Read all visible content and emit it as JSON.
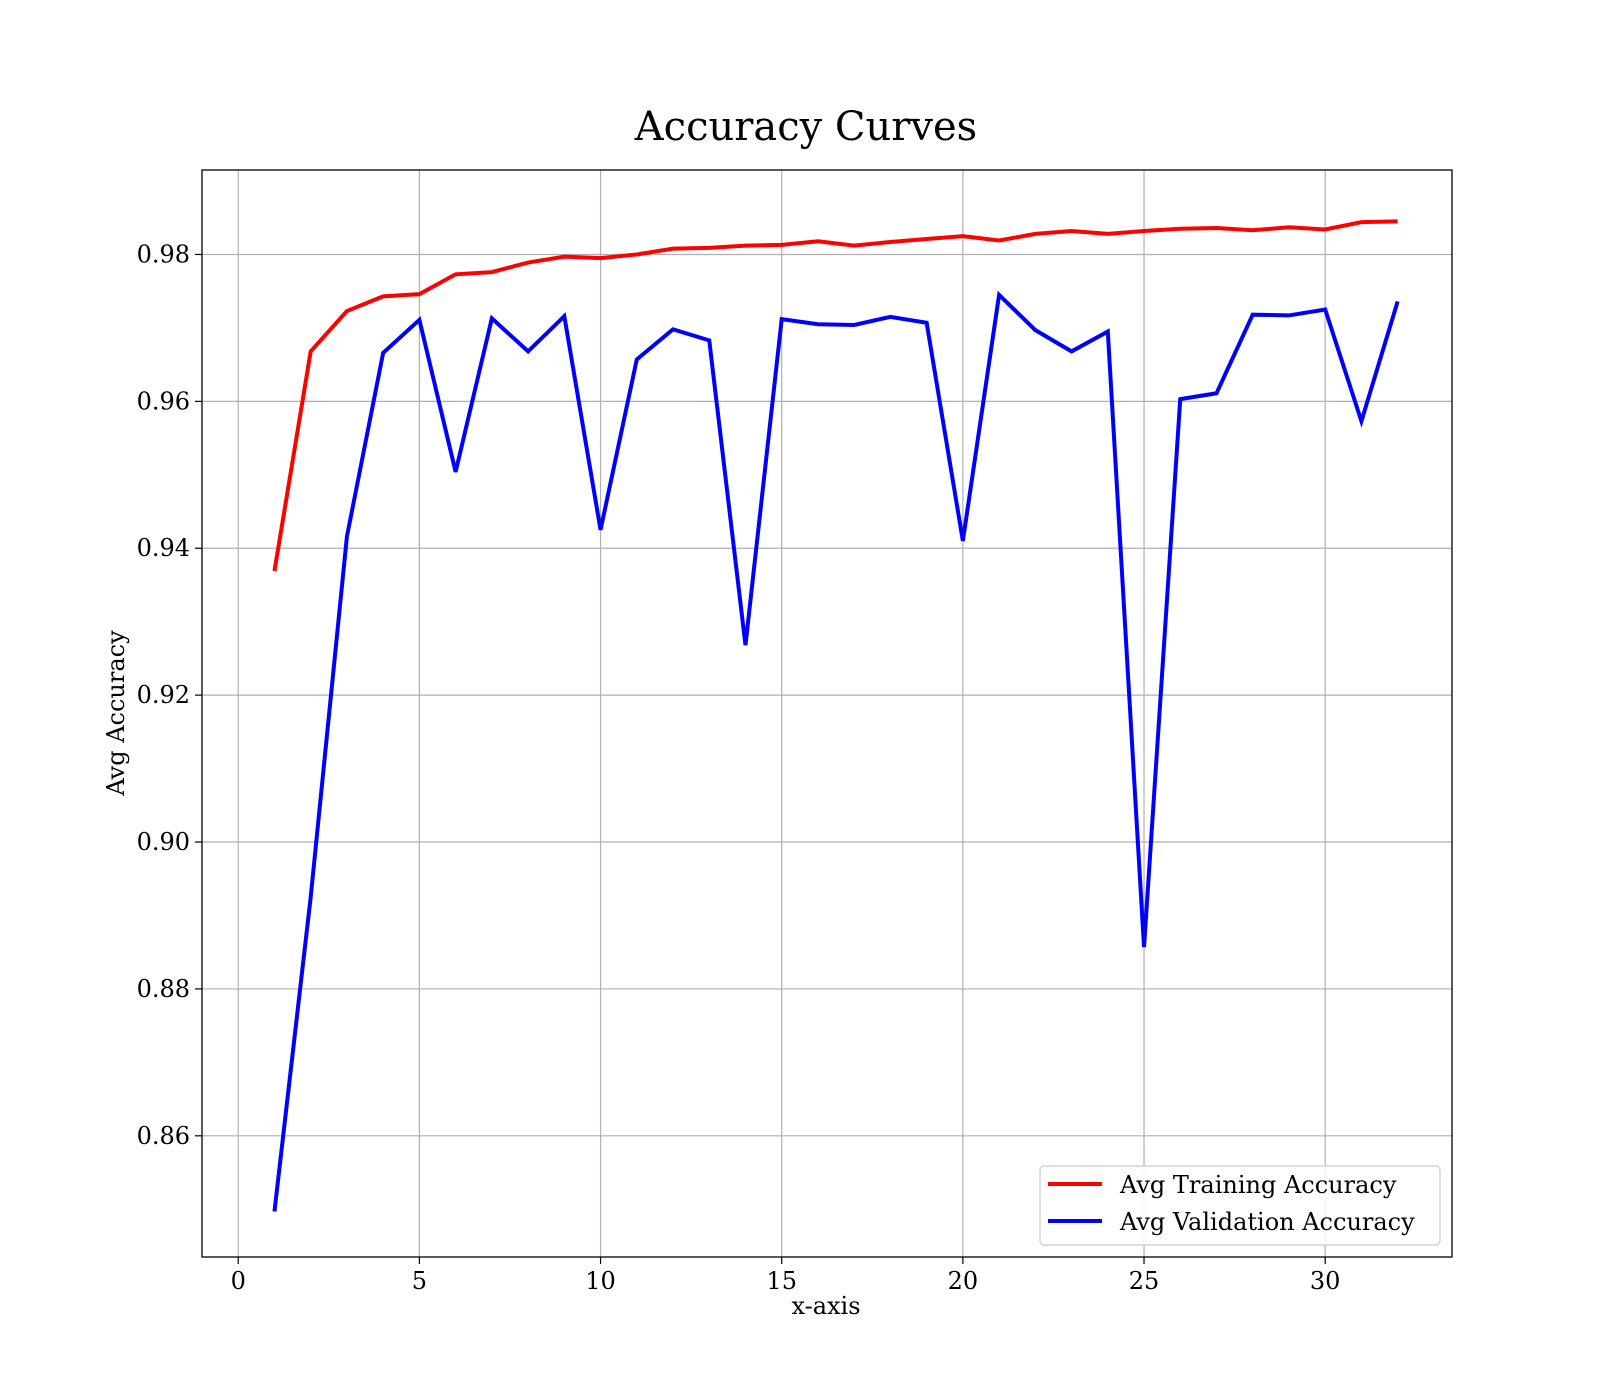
{
  "chart_data": {
    "type": "line",
    "title": "Accuracy Curves",
    "xlabel": "x-axis",
    "ylabel": "Avg Accuracy",
    "xlim": [
      -1,
      33.5
    ],
    "ylim": [
      0.8435,
      0.9915
    ],
    "xticks": [
      0,
      5,
      10,
      15,
      20,
      25,
      30
    ],
    "xtick_labels": [
      "0",
      "5",
      "10",
      "15",
      "20",
      "25",
      "30"
    ],
    "yticks": [
      0.86,
      0.88,
      0.9,
      0.92,
      0.94,
      0.96,
      0.98
    ],
    "ytick_labels": [
      "0.86",
      "0.88",
      "0.90",
      "0.92",
      "0.94",
      "0.96",
      "0.98"
    ],
    "grid": true,
    "legend_position": "lower-right",
    "x": [
      1,
      2,
      3,
      4,
      5,
      6,
      7,
      8,
      9,
      10,
      11,
      12,
      13,
      14,
      15,
      16,
      17,
      18,
      19,
      20,
      21,
      22,
      23,
      24,
      25,
      26,
      27,
      28,
      29,
      30,
      31,
      32
    ],
    "series": [
      {
        "name": "Avg Training Accuracy",
        "color": "#ff0000",
        "values": [
          0.9369,
          0.9668,
          0.9723,
          0.9743,
          0.9746,
          0.9773,
          0.9776,
          0.9789,
          0.9797,
          0.9795,
          0.98,
          0.9808,
          0.9809,
          0.9812,
          0.9813,
          0.9818,
          0.9812,
          0.9817,
          0.9821,
          0.9825,
          0.9819,
          0.9828,
          0.9832,
          0.9828,
          0.9832,
          0.9835,
          0.9836,
          0.9833,
          0.9837,
          0.9834,
          0.9844,
          0.9845
        ]
      },
      {
        "name": "Avg Validation Accuracy",
        "color": "#0000ff",
        "values": [
          0.8497,
          0.8925,
          0.9416,
          0.9666,
          0.9711,
          0.9504,
          0.9713,
          0.9668,
          0.9716,
          0.9425,
          0.9657,
          0.9698,
          0.9683,
          0.9268,
          0.9712,
          0.9705,
          0.9704,
          0.9715,
          0.9707,
          0.941,
          0.9745,
          0.9697,
          0.9668,
          0.9695,
          0.8857,
          0.9603,
          0.9611,
          0.9718,
          0.9717,
          0.9725,
          0.9573,
          0.9736
        ]
      }
    ]
  }
}
